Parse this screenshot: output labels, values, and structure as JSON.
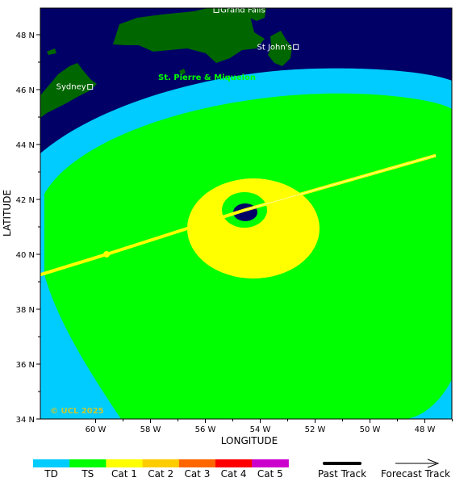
{
  "map": {
    "x_axis_label": "LONGITUDE",
    "y_axis_label": "LATITUDE",
    "x_ticks": [
      "60 W",
      "58 W",
      "56 W",
      "54 W",
      "52 W",
      "50 W",
      "48 W"
    ],
    "y_ticks": [
      "48 N",
      "46 N",
      "44 N",
      "42 N",
      "40 N",
      "38 N",
      "36 N",
      "34 N"
    ],
    "places": [
      {
        "name": "Grand Falls",
        "lon": -55.6,
        "lat": 48.9
      },
      {
        "name": "St John's",
        "lon": -52.7,
        "lat": 47.55
      },
      {
        "name": "Sydney",
        "lon": -60.2,
        "lat": 46.1
      }
    ],
    "region_label": "St. Pierre & Miquelon",
    "copyright": "© UCL 2025",
    "colors": {
      "ocean": "#000066",
      "land": "#006600",
      "td": "#00ccff",
      "ts": "#00ff00",
      "cat1": "#ffff00",
      "eye": "#000066",
      "track": "#ffff00"
    },
    "track_points": [
      [
        -62.2,
        39.2
      ],
      [
        -59.6,
        40.0
      ],
      [
        -54.6,
        41.6
      ],
      [
        -47.6,
        43.6
      ]
    ]
  },
  "legend": {
    "categories": [
      {
        "label": "TD",
        "color": "#00ccff"
      },
      {
        "label": "TS",
        "color": "#00ff00"
      },
      {
        "label": "Cat 1",
        "color": "#ffff00"
      },
      {
        "label": "Cat 2",
        "color": "#ffcc00"
      },
      {
        "label": "Cat 3",
        "color": "#ff6600"
      },
      {
        "label": "Cat 4",
        "color": "#ff0000"
      },
      {
        "label": "Cat 5",
        "color": "#cc00cc"
      }
    ],
    "past_track_label": "Past Track",
    "forecast_track_label": "Forecast Track"
  }
}
